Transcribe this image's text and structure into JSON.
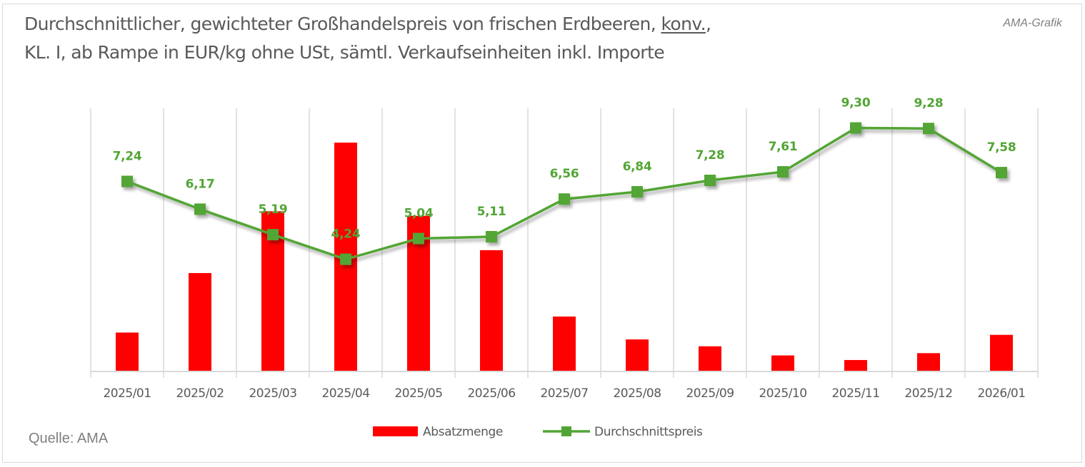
{
  "header": {
    "title_line1_prefix": "Durchschnittlicher, gewichteter Großhandelspreis von frischen Erdbeeren, ",
    "title_line1_underlined": "konv.",
    "title_line1_suffix": ",",
    "title_line2": "KL. I, ab Rampe in EUR/kg ohne USt, sämtl. Verkaufseinheiten inkl. Importe",
    "badge": "AMA-Grafik"
  },
  "footer": {
    "source": "Quelle: AMA"
  },
  "colors": {
    "bar": "#ff0000",
    "line": "#52a535",
    "grid": "#d9d9d9",
    "text": "#595959"
  },
  "chart_data": {
    "type": "bar",
    "title": "Durchschnittlicher, gewichteter Großhandelspreis von frischen Erdbeeren, konv., KL. I, ab Rampe in EUR/kg ohne USt, sämtl. Verkaufseinheiten inkl. Importe",
    "xlabel": "",
    "ylabel": "",
    "categories": [
      "2025/01",
      "2025/02",
      "2025/03",
      "2025/04",
      "2025/05",
      "2025/06",
      "2025/07",
      "2025/08",
      "2025/09",
      "2025/10",
      "2025/11",
      "2025/12",
      "2026/01"
    ],
    "series": [
      {
        "name": "Absatzmenge",
        "type": "bar",
        "axis": "secondary (unlabeled, relative index, 2025/04 = 100)",
        "values": [
          17,
          43,
          70,
          100,
          68,
          53,
          24,
          14,
          11,
          7,
          5,
          8,
          16
        ],
        "data_labels": false
      },
      {
        "name": "Durchschnittspreis",
        "type": "line",
        "marker": "square",
        "unit": "EUR/kg",
        "values": [
          7.24,
          6.17,
          5.19,
          4.24,
          5.04,
          5.11,
          6.56,
          6.84,
          7.28,
          7.61,
          9.3,
          9.28,
          7.58
        ],
        "labels": [
          "7,24",
          "6,17",
          "5,19",
          "4,24",
          "5,04",
          "5,11",
          "6,56",
          "6,84",
          "7,28",
          "7,61",
          "9,30",
          "9,28",
          "7,58"
        ],
        "data_labels": true
      }
    ],
    "price_axis_range": [
      0,
      10
    ],
    "y_axis_visible": false,
    "grid": "vertical category lines",
    "legend": {
      "position": "bottom",
      "entries": [
        "Absatzmenge",
        "Durchschnittspreis"
      ]
    }
  }
}
